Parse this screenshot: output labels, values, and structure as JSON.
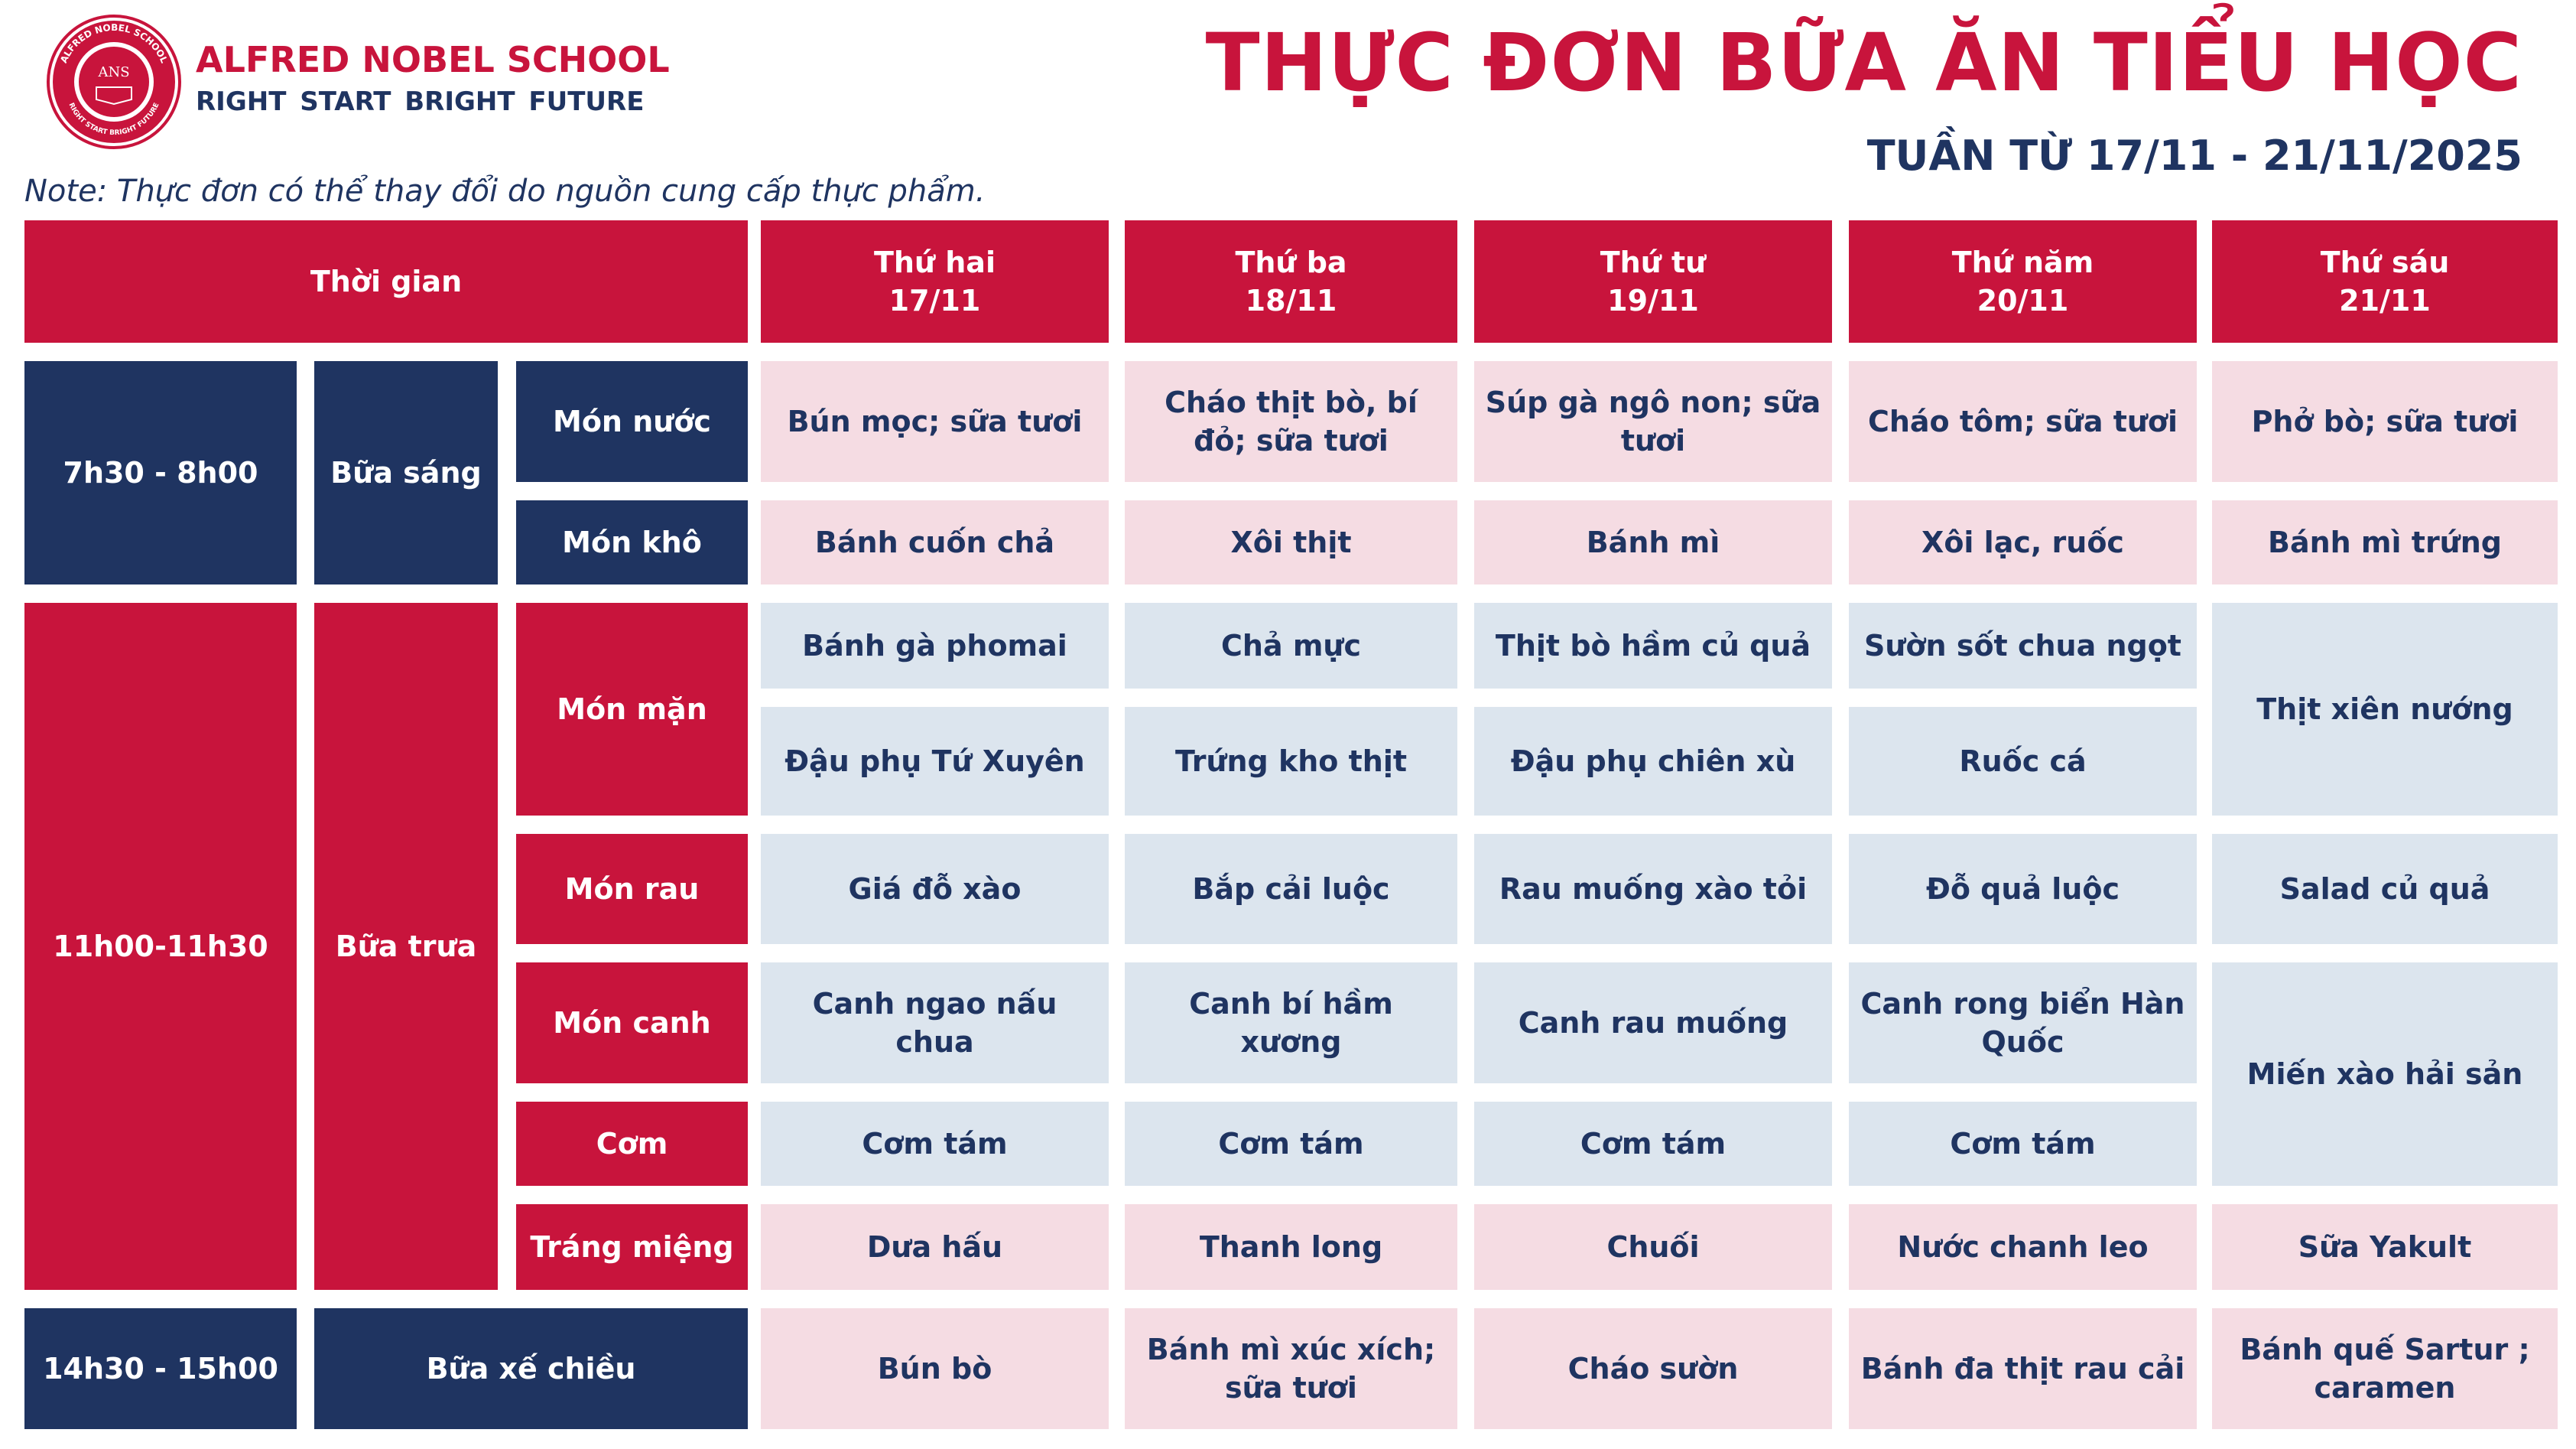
{
  "header": {
    "school_name": "ALFRED NOBEL SCHOOL",
    "motto": "RIGHT START  BRIGHT FUTURE",
    "logo_text": "ANS",
    "logo_ring_text": "ALFRED NOBEL SCHOOL",
    "logo_ring_bottom": "RIGHT START BRIGHT FUTURE",
    "title": "THỰC ĐƠN BỮA ĂN TIỂU HỌC",
    "week": "TUẦN TỪ 17/11 - 21/11/2025",
    "note": "Note: Thực đơn có thể thay đổi do nguồn cung cấp thực phẩm."
  },
  "colors": {
    "brand_red": "#c8143c",
    "brand_navy": "#1f3461",
    "cell_pink": "#f5dce3",
    "cell_blue": "#dce5ee"
  },
  "table": {
    "time_header": "Thời gian",
    "days": [
      {
        "name": "Thứ hai",
        "date": "17/11"
      },
      {
        "name": "Thứ ba",
        "date": "18/11"
      },
      {
        "name": "Thứ tư",
        "date": "19/11"
      },
      {
        "name": "Thứ năm",
        "date": "20/11"
      },
      {
        "name": "Thứ sáu",
        "date": "21/11"
      }
    ],
    "times": [
      "7h30 - 8h00",
      "11h00-11h30",
      "14h30 - 15h00"
    ],
    "meals": [
      "Bữa sáng",
      "Bữa trưa",
      "Bữa xế chiều"
    ],
    "categories": {
      "mon_nuoc": "Món nước",
      "mon_kho": "Món khô",
      "mon_man": "Món mặn",
      "mon_rau": "Món rau",
      "mon_canh": "Món canh",
      "com": "Cơm",
      "trang_mieng": "Tráng miệng"
    },
    "breakfast": {
      "mon_nuoc": [
        "Bún mọc; sữa tươi",
        "Cháo thịt bò, bí đỏ; sữa tươi",
        "Súp gà ngô non; sữa tươi",
        "Cháo tôm; sữa tươi",
        "Phở bò; sữa tươi"
      ],
      "mon_kho": [
        "Bánh cuốn chả",
        "Xôi thịt",
        "Bánh mì",
        "Xôi lạc, ruốc",
        "Bánh mì trứng"
      ]
    },
    "lunch": {
      "mon_man_1": [
        "Bánh gà phomai",
        "Chả mực",
        "Thịt bò hầm củ quả",
        "Sườn sốt chua ngọt"
      ],
      "mon_man_2": [
        "Đậu phụ Tứ Xuyên",
        "Trứng kho thịt",
        "Đậu phụ chiên xù",
        "Ruốc cá"
      ],
      "mon_man_friday": "Thịt xiên nướng",
      "mon_rau": [
        "Giá đỗ xào",
        "Bắp cải luộc",
        "Rau muống xào tỏi",
        "Đỗ quả luộc",
        "Salad củ quả"
      ],
      "mon_canh": [
        "Canh ngao nấu chua",
        "Canh bí hầm xương",
        "Canh rau muống",
        "Canh rong biển Hàn Quốc"
      ],
      "com": [
        "Cơm tám",
        "Cơm tám",
        "Cơm tám",
        "Cơm tám"
      ],
      "friday_canh_com": "Miến xào hải sản",
      "trang_mieng": [
        "Dưa hấu",
        "Thanh long",
        "Chuối",
        "Nước chanh leo",
        "Sữa Yakult"
      ]
    },
    "snack": [
      "Bún bò",
      "Bánh mì xúc xích; sữa tươi",
      "Cháo sườn",
      "Bánh đa thịt rau cải",
      "Bánh quế Sartur ; caramen"
    ]
  }
}
